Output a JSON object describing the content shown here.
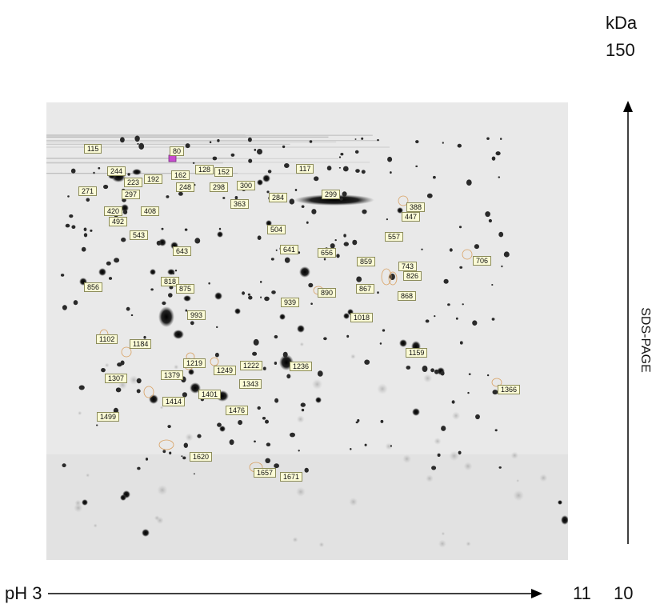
{
  "mw_unit": "kDa",
  "mw_top": "150",
  "ph_start": "pH 3",
  "ph_end": "11",
  "mw_bottom": "10",
  "sds_label": "SDS-PAGE",
  "colors": {
    "gel_background": "#e9e9e9",
    "spot": "#111111",
    "highlight_spot": "#c84bd0",
    "label_fill": "#fbfbd6",
    "outline": "#d8a060"
  },
  "spot_labels": [
    "115",
    "80",
    "244",
    "192",
    "162",
    "128",
    "152",
    "117",
    "271",
    "223",
    "297",
    "248",
    "298",
    "300",
    "284",
    "299",
    "363",
    "388",
    "420",
    "408",
    "447",
    "492",
    "504",
    "557",
    "543",
    "643",
    "641",
    "656",
    "859",
    "743",
    "706",
    "826",
    "856",
    "818",
    "875",
    "867",
    "890",
    "868",
    "939",
    "993",
    "1018",
    "1102",
    "1184",
    "1159",
    "1219",
    "1249",
    "1222",
    "1236",
    "1307",
    "1379",
    "1343",
    "1366",
    "1414",
    "1401",
    "1476",
    "1499",
    "1620",
    "1657",
    "1671"
  ]
}
